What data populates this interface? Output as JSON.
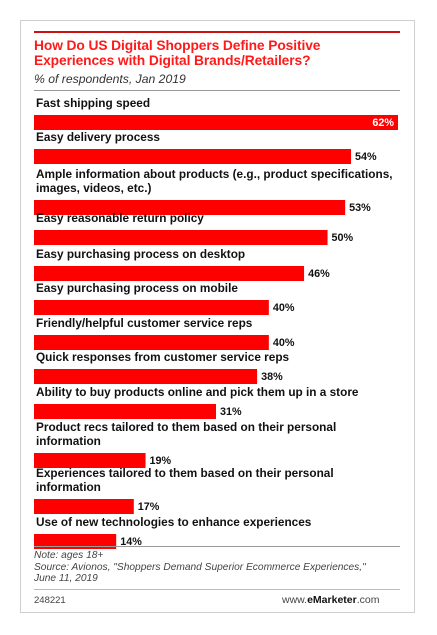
{
  "title": "How Do US Digital Shoppers Define Positive Experiences with Digital Brands/Retailers?",
  "subtitle": "% of respondents, Jan 2019",
  "note": "Note: ages 18+",
  "source_line1": "Source: Avionos, \"Shoppers Demand Superior Ecommerce Experiences,\"",
  "source_line2": "June 11, 2019",
  "chart_id": "248221",
  "brand_prefix": "www.",
  "brand_name": "eMarketer",
  "brand_suffix": ".com",
  "colors": {
    "bar": "#ff0000",
    "title": "#ff1a1a"
  },
  "chart_data": {
    "type": "bar",
    "orientation": "horizontal",
    "categories": [
      [
        "Fast shipping speed"
      ],
      [
        "Easy delivery process"
      ],
      [
        "Ample information about products (e.g., product specifications,",
        "images, videos, etc.)"
      ],
      [
        "Easy reasonable return policy"
      ],
      [
        "Easy purchasing process on desktop"
      ],
      [
        "Easy purchasing process on mobile"
      ],
      [
        "Friendly/helpful customer service reps"
      ],
      [
        "Quick responses from customer service reps"
      ],
      [
        "Ability to buy products online and pick them up in a store"
      ],
      [
        "Product recs tailored to them based on their personal",
        "information"
      ],
      [
        "Experiences tailored to them based on their personal",
        "information"
      ],
      [
        "Use of new technologies to enhance experiences"
      ]
    ],
    "values": [
      62,
      54,
      53,
      50,
      46,
      40,
      40,
      38,
      31,
      19,
      17,
      14
    ],
    "labels": [
      "62%",
      "54%",
      "53%",
      "50%",
      "46%",
      "40%",
      "40%",
      "38%",
      "31%",
      "19%",
      "17%",
      "14%"
    ],
    "xlim": [
      0,
      62
    ],
    "grid": false,
    "legend": "none"
  }
}
